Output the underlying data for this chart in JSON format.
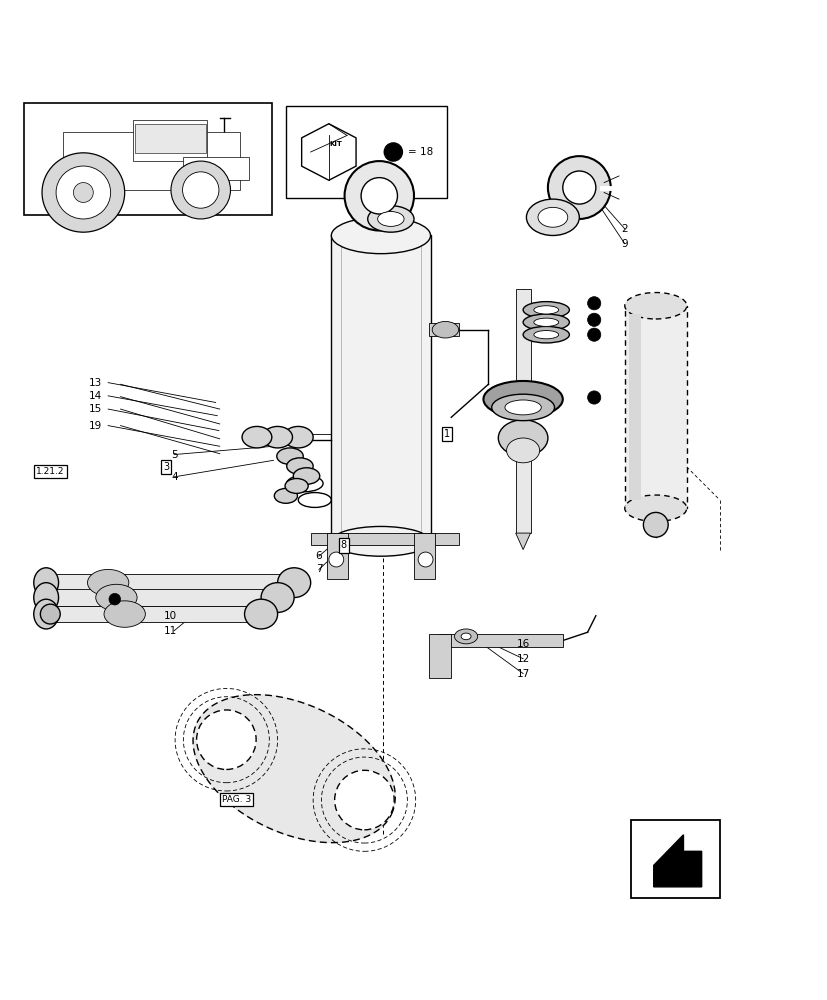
{
  "bg_color": "#ffffff",
  "line_color": "#000000",
  "fig_width": 8.28,
  "fig_height": 10.0,
  "dpi": 100,
  "kit_text": "KIT",
  "kit_number": "18",
  "page_ref": "PAG. 3",
  "ref_label": "1.21.2"
}
